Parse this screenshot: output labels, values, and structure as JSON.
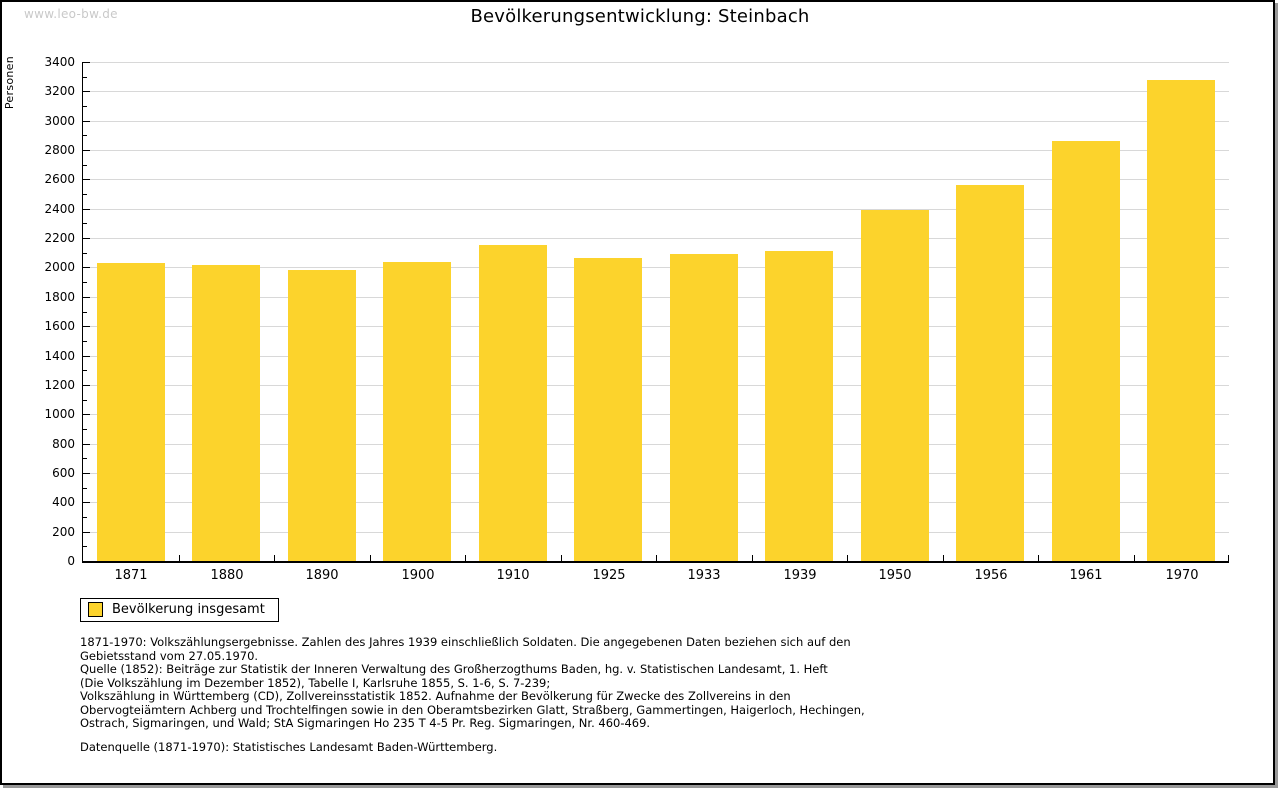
{
  "page": {
    "watermark": "www.leo-bw.de",
    "title": "Bevölkerungsentwicklung: Steinbach"
  },
  "chart_data": {
    "type": "bar",
    "title": "Bevölkerungsentwicklung: Steinbach",
    "xlabel": "",
    "ylabel": "Personen",
    "categories": [
      "1871",
      "1880",
      "1890",
      "1900",
      "1910",
      "1925",
      "1933",
      "1939",
      "1950",
      "1956",
      "1961",
      "1970"
    ],
    "values": [
      2030,
      2015,
      1980,
      2040,
      2155,
      2065,
      2090,
      2115,
      2390,
      2565,
      2865,
      3275
    ],
    "ylim": [
      0,
      3400
    ],
    "ytick_step": 200,
    "ytick_minor_step": 100,
    "yticks": [
      "0",
      "200",
      "400",
      "600",
      "800",
      "1000",
      "1200",
      "1400",
      "1600",
      "1800",
      "2000",
      "2200",
      "2400",
      "2600",
      "2800",
      "3000",
      "3200",
      "3400"
    ],
    "grid": "horizontal-major",
    "legend_position": "bottom-left",
    "bar_color": "#FCD32C",
    "gridline_color": "#d8d8d8"
  },
  "legend": {
    "label": "Bevölkerung insgesamt",
    "swatch_color": "#FCD32C"
  },
  "footnotes": {
    "lines": [
      "1871-1970: Volkszählungsergebnisse. Zahlen des Jahres 1939 einschließlich Soldaten. Die angegebenen Daten beziehen sich auf den",
      "Gebietsstand vom 27.05.1970.",
      "Quelle (1852): Beiträge zur Statistik der Inneren Verwaltung des Großherzogthums Baden, hg. v. Statistischen Landesamt, 1. Heft",
      "(Die Volkszählung im Dezember 1852), Tabelle I, Karlsruhe 1855, S. 1-6, S. 7-239;",
      "Volkszählung in Württemberg (CD), Zollvereinsstatistik 1852. Aufnahme der Bevölkerung für Zwecke des Zollvereins in den",
      "Obervogteiämtern Achberg und Trochtelfingen sowie in den Oberamtsbezirken Glatt, Straßberg, Gammertingen, Haigerloch, Hechingen,",
      "Ostrach, Sigmaringen, und Wald; StA Sigmaringen Ho 235 T 4-5 Pr. Reg. Sigmaringen, Nr. 460-469."
    ],
    "datasource": "Datenquelle (1871-1970): Statistisches Landesamt Baden-Württemberg."
  }
}
